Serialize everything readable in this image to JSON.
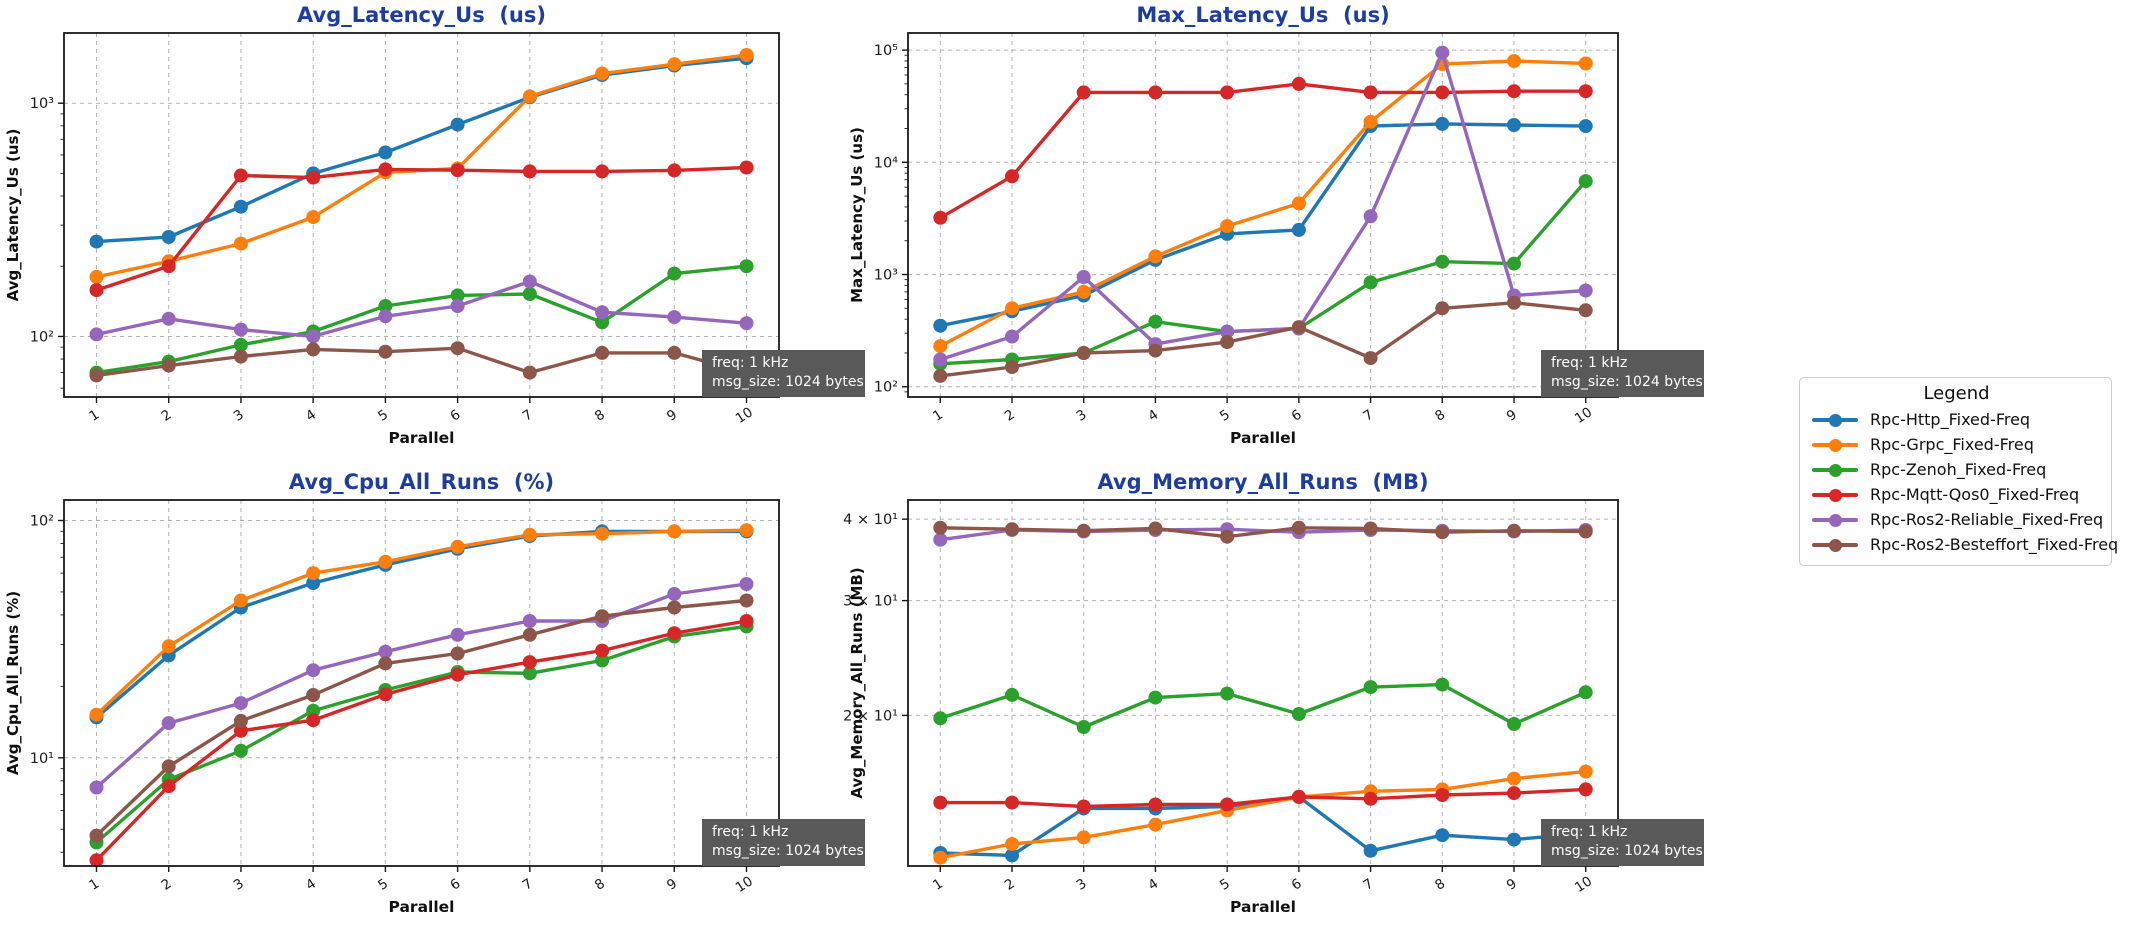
{
  "figure": {
    "background": "#ffffff",
    "title_color": "#1e3d9e",
    "grid_color": "#b3b3b3",
    "spine_color": "#1a1a1a",
    "tick_label_color": "#1a1a1a",
    "annotation_bg": "#595959",
    "annotation_text_color": "#ffffff"
  },
  "annotation": {
    "lines": [
      "freq: 1 kHz",
      "msg_size: 1024 bytes"
    ]
  },
  "legend": {
    "title": "Legend",
    "entries": [
      {
        "label": "Rpc-Http_Fixed-Freq",
        "color": "#1f77b4"
      },
      {
        "label": "Rpc-Grpc_Fixed-Freq",
        "color": "#ff7f0e"
      },
      {
        "label": "Rpc-Zenoh_Fixed-Freq",
        "color": "#2ca02c"
      },
      {
        "label": "Rpc-Mqtt-Qos0_Fixed-Freq",
        "color": "#d62728"
      },
      {
        "label": "Rpc-Ros2-Reliable_Fixed-Freq",
        "color": "#9467bd"
      },
      {
        "label": "Rpc-Ros2-Besteffort_Fixed-Freq",
        "color": "#8c564b"
      }
    ]
  },
  "chart_data": {
    "type": "line",
    "x": [
      1,
      2,
      3,
      4,
      5,
      6,
      7,
      8,
      9,
      10
    ],
    "xlabel": "Parallel",
    "xticklabels": [
      "1",
      "2",
      "3",
      "4",
      "5",
      "6",
      "7",
      "8",
      "9",
      "10"
    ],
    "grid": true,
    "legend_position": "right-outside",
    "series_names": [
      "Rpc-Http_Fixed-Freq",
      "Rpc-Grpc_Fixed-Freq",
      "Rpc-Zenoh_Fixed-Freq",
      "Rpc-Mqtt-Qos0_Fixed-Freq",
      "Rpc-Ros2-Reliable_Fixed-Freq",
      "Rpc-Ros2-Besteffort_Fixed-Freq"
    ],
    "series_colors": [
      "#1f77b4",
      "#ff7f0e",
      "#2ca02c",
      "#d62728",
      "#9467bd",
      "#8c564b"
    ],
    "charts": [
      {
        "title": "Avg_Latency_Us  (us)",
        "ylabel": "Avg_Latency_Us (us)",
        "yscale": "log",
        "ylim": [
          55,
          2000
        ],
        "yticks": [
          {
            "value": 100,
            "label": "10²"
          },
          {
            "value": 1000,
            "label": "10³"
          }
        ],
        "series": [
          [
            255,
            267,
            360,
            500,
            615,
            810,
            1060,
            1320,
            1450,
            1560
          ],
          [
            180,
            210,
            250,
            325,
            505,
            525,
            1070,
            1340,
            1470,
            1610
          ],
          [
            70,
            78,
            92,
            105,
            135,
            150,
            152,
            115,
            186,
            200
          ],
          [
            158,
            200,
            490,
            480,
            520,
            516,
            510,
            510,
            515,
            530
          ],
          [
            102,
            119,
            107,
            100,
            122,
            135,
            172,
            127,
            121,
            114
          ],
          [
            68,
            75,
            82,
            88,
            86,
            89,
            70,
            85,
            85,
            70
          ]
        ]
      },
      {
        "title": "Max_Latency_Us  (us)",
        "ylabel": "Max_Latency_Us (us)",
        "yscale": "log",
        "ylim": [
          81,
          142000
        ],
        "yticks": [
          {
            "value": 100,
            "label": "10²"
          },
          {
            "value": 1000,
            "label": "10³"
          },
          {
            "value": 10000,
            "label": "10⁴"
          },
          {
            "value": 100000,
            "label": "10⁵"
          }
        ],
        "series": [
          [
            350,
            470,
            650,
            1350,
            2300,
            2500,
            21000,
            22000,
            21500,
            21000
          ],
          [
            230,
            500,
            700,
            1450,
            2700,
            4300,
            23000,
            75000,
            80000,
            76000
          ],
          [
            160,
            175,
            200,
            380,
            310,
            330,
            850,
            1300,
            1250,
            6800
          ],
          [
            3200,
            7500,
            42000,
            42000,
            42000,
            50000,
            42000,
            42000,
            43000,
            43000
          ],
          [
            175,
            280,
            950,
            240,
            310,
            330,
            3300,
            95000,
            650,
            720
          ],
          [
            125,
            150,
            200,
            210,
            250,
            340,
            180,
            500,
            560,
            480
          ]
        ]
      },
      {
        "title": "Avg_Cpu_All_Runs  (%)",
        "ylabel": "Avg_Cpu_All_Runs (%)",
        "yscale": "log",
        "ylim": [
          3.5,
          122
        ],
        "yticks": [
          {
            "value": 10,
            "label": "10¹"
          },
          {
            "value": 100,
            "label": "10²"
          }
        ],
        "series": [
          [
            14.8,
            27,
            43,
            54.5,
            65,
            76,
            86,
            90,
            90,
            90
          ],
          [
            15.2,
            29.5,
            46,
            60,
            67,
            77.5,
            87,
            88,
            90,
            91
          ],
          [
            4.4,
            8.1,
            10.7,
            15.8,
            19.3,
            23,
            22.7,
            25.7,
            32.4,
            35.8
          ],
          [
            3.7,
            7.6,
            13,
            14.4,
            18.5,
            22.4,
            25.3,
            28.3,
            33.5,
            37.7
          ],
          [
            7.5,
            14,
            17,
            23.4,
            28,
            33,
            37.7,
            37.7,
            49,
            54
          ],
          [
            4.7,
            9.2,
            14.3,
            18.4,
            25,
            27.5,
            33,
            39.5,
            43,
            46
          ]
        ]
      },
      {
        "title": "Avg_Memory_All_Runs  (MB)",
        "ylabel": "Avg_Memory_All_Runs (MB)",
        "yscale": "log",
        "ylim": [
          11.75,
          42.8
        ],
        "yticks": [
          {
            "value": 20,
            "label": "2 × 10¹"
          },
          {
            "value": 30,
            "label": "3 × 10¹"
          },
          {
            "value": 40,
            "label": "4 × 10¹"
          }
        ],
        "series": [
          [
            12.3,
            12.2,
            14.4,
            14.4,
            14.5,
            15.0,
            12.4,
            13.1,
            12.9,
            13.2
          ],
          [
            12.1,
            12.7,
            13.0,
            13.6,
            14.3,
            15.0,
            15.3,
            15.4,
            16.0,
            16.4
          ],
          [
            19.8,
            21.5,
            19.2,
            21.3,
            21.6,
            20.1,
            22.1,
            22.3,
            19.4,
            21.7
          ],
          [
            14.7,
            14.7,
            14.5,
            14.6,
            14.6,
            15.0,
            14.9,
            15.1,
            15.2,
            15.4
          ],
          [
            37.2,
            38.5,
            38.3,
            38.5,
            38.6,
            38.2,
            38.5,
            38.4,
            38.3,
            38.5
          ],
          [
            38.8,
            38.6,
            38.4,
            38.7,
            37.6,
            38.8,
            38.7,
            38.2,
            38.4,
            38.3
          ]
        ]
      }
    ]
  }
}
